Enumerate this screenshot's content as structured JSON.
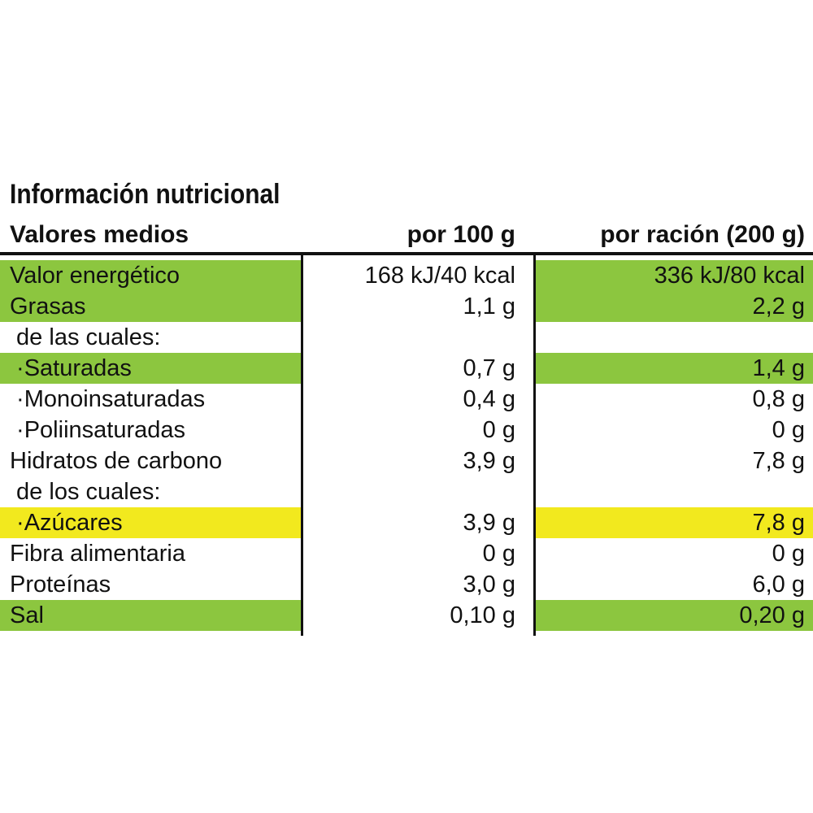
{
  "header": {
    "title": "Información nutricional"
  },
  "table": {
    "columns": [
      "Valores medios",
      "por 100 g",
      "por ración (200 g)"
    ],
    "rows": [
      {
        "cells": [
          "Valor energético",
          "168 kJ/40 kcal",
          "336 kJ/80 kcal"
        ],
        "color": "#8cc63f"
      },
      {
        "cells": [
          "Grasas",
          "1,1 g",
          "2,2 g"
        ],
        "color": "#8cc63f"
      },
      {
        "cells": [
          " de las cuales:"
        ]
      },
      {
        "cells": [
          " ·Saturadas",
          "0,7 g",
          "1,4 g"
        ],
        "color": "#8cc63f"
      },
      {
        "cells": [
          " ·Monoinsaturadas",
          "0,4 g",
          "0,8 g"
        ]
      },
      {
        "cells": [
          " ·Poliinsaturadas",
          "0 g",
          "0 g"
        ]
      },
      {
        "cells": [
          "Hidratos de carbono",
          "3,9 g",
          "7,8 g"
        ]
      },
      {
        "cells": [
          " de los cuales:"
        ]
      },
      {
        "cells": [
          " ·Azúcares",
          "3,9 g",
          "7,8 g"
        ],
        "color": "#f2e91e"
      },
      {
        "cells": [
          "Fibra alimentaria",
          "0 g",
          "0 g"
        ]
      },
      {
        "cells": [
          "Proteínas",
          "3,0 g",
          "6,0 g"
        ]
      },
      {
        "cells": [
          "Sal",
          "0,10 g",
          "0,20 g"
        ],
        "color": "#8cc63f"
      }
    ]
  }
}
